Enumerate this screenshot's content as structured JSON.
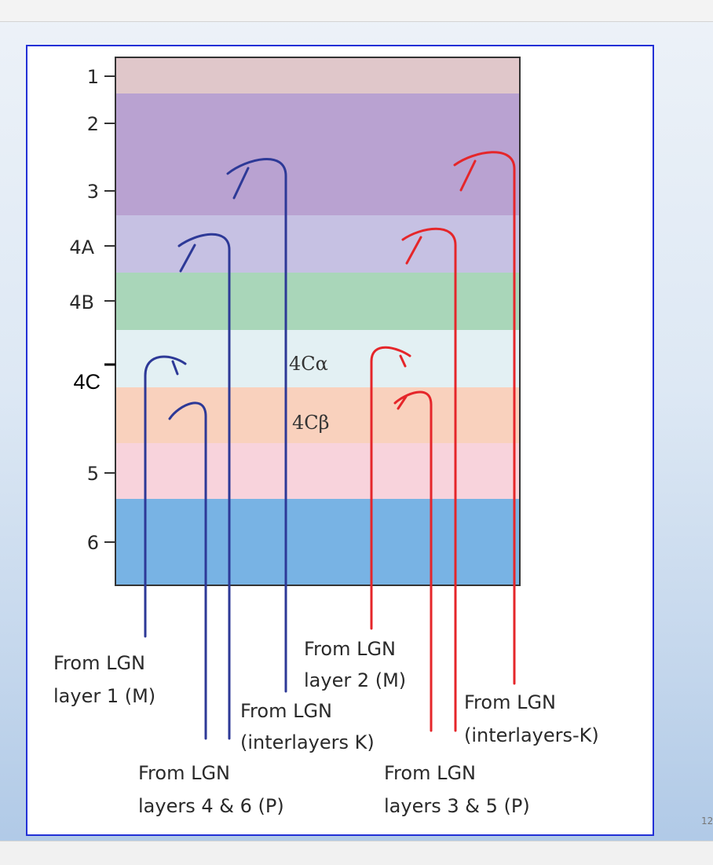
{
  "slide": {
    "page_number": "12"
  },
  "diagram": {
    "layers": [
      {
        "id": "1",
        "label": "1",
        "color": "#e0c7ca"
      },
      {
        "id": "2",
        "label": "2",
        "color": "#b9a2d1"
      },
      {
        "id": "3",
        "label": "3",
        "color": "#b9a2d1"
      },
      {
        "id": "4A",
        "label": "4A",
        "color": "#c6c1e3"
      },
      {
        "id": "4B",
        "label": "4B",
        "color": "#a9d6b9"
      },
      {
        "id": "4Ca",
        "label": "4C",
        "color": "#e3f0f3"
      },
      {
        "id": "4Cb",
        "label": "",
        "color": "#f9d1bd"
      },
      {
        "id": "5",
        "label": "5",
        "color": "#f8d3dc"
      },
      {
        "id": "6",
        "label": "6",
        "color": "#78b3e4"
      }
    ],
    "sublayer_labels": {
      "alpha": "4Cα",
      "beta": "4Cβ"
    },
    "colors": {
      "magno_axon": "#2d3997",
      "parvo_axon": "#e5262a",
      "frame": "#2230d6"
    },
    "captions": {
      "lgn_layer1": [
        "From LGN",
        "layer 1 (M)"
      ],
      "lgn_layers_4_6": [
        "From LGN",
        "layers 4 & 6 (P)"
      ],
      "lgn_interlayers_k_left": [
        "From LGN",
        "(interlayers K)"
      ],
      "lgn_layer2": [
        "From LGN",
        "layer 2 (M)"
      ],
      "lgn_layers_3_5": [
        "From LGN",
        "layers 3 & 5 (P)"
      ],
      "lgn_interlayers_k_right": [
        "From LGN",
        "(interlayers-K)"
      ]
    }
  }
}
